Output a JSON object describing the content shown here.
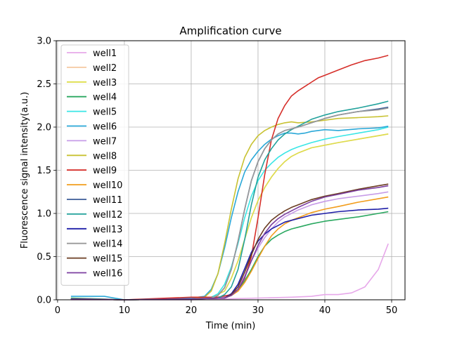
{
  "chart_data": {
    "type": "line",
    "title": "Amplification curve",
    "xlabel": "Time (min)",
    "ylabel": "Fluorescence signal intensity(a.u.)",
    "xlim": [
      -0.2,
      52
    ],
    "ylim": [
      0,
      3.0
    ],
    "xticks": [
      "0",
      "10",
      "20",
      "30",
      "40",
      "50"
    ],
    "yticks": [
      "0.0",
      "0.5",
      "1.0",
      "1.5",
      "2.0",
      "2.5",
      "3.0"
    ],
    "grid": true,
    "legend_position": "upper-left",
    "series": [
      {
        "name": "well1",
        "color": "#e7a8ea",
        "x": [
          2,
          10,
          20,
          25,
          30,
          35,
          38,
          40,
          42,
          44,
          46,
          48,
          49.5
        ],
        "y": [
          0.0,
          0.0,
          0.0,
          0.01,
          0.02,
          0.03,
          0.04,
          0.06,
          0.06,
          0.08,
          0.15,
          0.35,
          0.65
        ]
      },
      {
        "name": "well2",
        "color": "#f5c9a0",
        "x": [
          2,
          10,
          20,
          23,
          25,
          26,
          27,
          28,
          29,
          30,
          31,
          32,
          33,
          34,
          35,
          36,
          38,
          40,
          42,
          45,
          48,
          49.5
        ],
        "y": [
          0.01,
          0.0,
          0.01,
          0.03,
          0.1,
          0.25,
          0.45,
          0.7,
          0.95,
          1.15,
          1.3,
          1.42,
          1.52,
          1.6,
          1.66,
          1.7,
          1.76,
          1.79,
          1.82,
          1.86,
          1.9,
          1.92
        ]
      },
      {
        "name": "well3",
        "color": "#dddd4a",
        "x": [
          2,
          10,
          20,
          23,
          25,
          26,
          27,
          28,
          29,
          30,
          31,
          32,
          33,
          34,
          35,
          36,
          38,
          40,
          42,
          45,
          48,
          49.5
        ],
        "y": [
          0.01,
          0.0,
          0.01,
          0.03,
          0.1,
          0.25,
          0.45,
          0.7,
          0.95,
          1.15,
          1.3,
          1.42,
          1.52,
          1.6,
          1.66,
          1.7,
          1.76,
          1.79,
          1.82,
          1.86,
          1.9,
          1.92
        ]
      },
      {
        "name": "well4",
        "color": "#2aa860",
        "x": [
          2,
          10,
          20,
          24,
          26,
          27,
          28,
          29,
          30,
          31,
          32,
          33,
          34,
          35,
          36,
          38,
          40,
          42,
          45,
          48,
          49.5
        ],
        "y": [
          0.02,
          0.0,
          0.01,
          0.02,
          0.06,
          0.12,
          0.22,
          0.35,
          0.5,
          0.62,
          0.7,
          0.75,
          0.79,
          0.82,
          0.84,
          0.88,
          0.91,
          0.93,
          0.96,
          1.0,
          1.02
        ]
      },
      {
        "name": "well5",
        "color": "#3ae6e6",
        "x": [
          2,
          10,
          20,
          23,
          24,
          25,
          26,
          27,
          28,
          29,
          30,
          31,
          32,
          33,
          34,
          35,
          36,
          38,
          40,
          42,
          45,
          48,
          49.5
        ],
        "y": [
          0.01,
          0.0,
          0.01,
          0.03,
          0.07,
          0.18,
          0.38,
          0.65,
          0.95,
          1.2,
          1.38,
          1.5,
          1.58,
          1.65,
          1.7,
          1.74,
          1.77,
          1.82,
          1.86,
          1.89,
          1.93,
          1.97,
          2.0
        ]
      },
      {
        "name": "well6",
        "color": "#2aa8d8",
        "x": [
          2,
          7,
          10,
          20,
          22,
          23,
          24,
          25,
          26,
          27,
          28,
          29,
          30,
          31,
          32,
          33,
          34,
          35,
          36,
          37,
          38,
          40,
          42,
          45,
          48,
          49.5
        ],
        "y": [
          0.04,
          0.04,
          0.0,
          0.02,
          0.04,
          0.12,
          0.3,
          0.6,
          0.95,
          1.25,
          1.48,
          1.62,
          1.72,
          1.8,
          1.86,
          1.9,
          1.93,
          1.93,
          1.92,
          1.93,
          1.95,
          1.97,
          1.96,
          1.98,
          1.99,
          2.01
        ]
      },
      {
        "name": "well7",
        "color": "#c79ce8",
        "x": [
          2,
          10,
          20,
          25,
          26,
          27,
          28,
          29,
          30,
          31,
          32,
          33,
          34,
          35,
          36,
          38,
          40,
          42,
          45,
          48,
          49.5
        ],
        "y": [
          0.01,
          0.0,
          0.01,
          0.03,
          0.07,
          0.15,
          0.28,
          0.45,
          0.6,
          0.72,
          0.82,
          0.9,
          0.96,
          1.0,
          1.04,
          1.1,
          1.14,
          1.17,
          1.2,
          1.23,
          1.25
        ]
      },
      {
        "name": "well8",
        "color": "#c8c232",
        "x": [
          2,
          10,
          20,
          22,
          23,
          24,
          25,
          26,
          27,
          28,
          29,
          30,
          31,
          32,
          33,
          34,
          35,
          36,
          38,
          40,
          42,
          45,
          48,
          49.5
        ],
        "y": [
          0.01,
          0.0,
          0.01,
          0.03,
          0.1,
          0.3,
          0.65,
          1.05,
          1.4,
          1.65,
          1.8,
          1.9,
          1.96,
          2.0,
          2.03,
          2.05,
          2.06,
          2.05,
          2.06,
          2.08,
          2.1,
          2.11,
          2.12,
          2.13
        ]
      },
      {
        "name": "well9",
        "color": "#d62f2a",
        "x": [
          2,
          10,
          20,
          24,
          26,
          27,
          28,
          29,
          30,
          31,
          32,
          33,
          34,
          35,
          36,
          37,
          38,
          39,
          40,
          41,
          42,
          44,
          46,
          48,
          49.5
        ],
        "y": [
          0.01,
          0.0,
          0.03,
          0.03,
          0.06,
          0.12,
          0.25,
          0.5,
          0.95,
          1.45,
          1.85,
          2.1,
          2.25,
          2.36,
          2.42,
          2.47,
          2.52,
          2.57,
          2.6,
          2.63,
          2.66,
          2.72,
          2.77,
          2.8,
          2.83
        ]
      },
      {
        "name": "well10",
        "color": "#f29d1c",
        "x": [
          2,
          10,
          20,
          25,
          26,
          27,
          28,
          29,
          30,
          31,
          32,
          33,
          34,
          35,
          36,
          38,
          40,
          42,
          45,
          48,
          49.5
        ],
        "y": [
          0.01,
          0.0,
          0.01,
          0.02,
          0.05,
          0.1,
          0.2,
          0.33,
          0.48,
          0.62,
          0.74,
          0.82,
          0.88,
          0.92,
          0.95,
          1.01,
          1.05,
          1.08,
          1.13,
          1.17,
          1.19
        ]
      },
      {
        "name": "well11",
        "color": "#3b5c98",
        "x": [
          2,
          10,
          20,
          23,
          24,
          25,
          26,
          27,
          28,
          29,
          30,
          31,
          32,
          33,
          34,
          35,
          36,
          38,
          40,
          42,
          45,
          48,
          49.5
        ],
        "y": [
          0.01,
          0.0,
          0.01,
          0.02,
          0.05,
          0.14,
          0.35,
          0.68,
          1.05,
          1.38,
          1.6,
          1.75,
          1.85,
          1.92,
          1.96,
          1.98,
          2.0,
          2.05,
          2.1,
          2.14,
          2.18,
          2.21,
          2.23
        ]
      },
      {
        "name": "well12",
        "color": "#22a29c",
        "x": [
          2,
          10,
          20,
          24,
          25,
          26,
          27,
          28,
          29,
          30,
          31,
          32,
          33,
          34,
          35,
          36,
          37,
          38,
          40,
          42,
          45,
          48,
          49.5
        ],
        "y": [
          0.01,
          0.0,
          0.01,
          0.02,
          0.06,
          0.15,
          0.35,
          0.7,
          1.1,
          1.42,
          1.62,
          1.75,
          1.85,
          1.92,
          1.97,
          2.01,
          2.05,
          2.09,
          2.14,
          2.18,
          2.22,
          2.27,
          2.3
        ]
      },
      {
        "name": "well13",
        "color": "#1f1fa8",
        "x": [
          2,
          10,
          20,
          25,
          26,
          27,
          28,
          29,
          30,
          31,
          32,
          33,
          34,
          35,
          36,
          38,
          40,
          42,
          45,
          48,
          49.5
        ],
        "y": [
          0.01,
          0.0,
          0.01,
          0.02,
          0.07,
          0.18,
          0.36,
          0.55,
          0.68,
          0.76,
          0.82,
          0.86,
          0.9,
          0.92,
          0.94,
          0.98,
          1.0,
          1.02,
          1.04,
          1.05,
          1.06
        ]
      },
      {
        "name": "well14",
        "color": "#999999",
        "x": [
          2,
          10,
          20,
          23,
          24,
          25,
          26,
          27,
          28,
          29,
          30,
          31,
          32,
          33,
          34,
          35,
          36,
          38,
          40,
          42,
          45,
          48,
          49.5
        ],
        "y": [
          0.01,
          0.0,
          0.01,
          0.02,
          0.05,
          0.14,
          0.35,
          0.68,
          1.05,
          1.38,
          1.6,
          1.75,
          1.85,
          1.92,
          1.96,
          1.98,
          2.0,
          2.05,
          2.1,
          2.14,
          2.18,
          2.2,
          2.22
        ]
      },
      {
        "name": "well15",
        "color": "#6b3d22",
        "x": [
          2,
          10,
          20,
          25,
          26,
          27,
          28,
          29,
          30,
          31,
          32,
          33,
          34,
          35,
          36,
          38,
          40,
          42,
          45,
          48,
          49.5
        ],
        "y": [
          0.01,
          0.0,
          0.01,
          0.02,
          0.06,
          0.15,
          0.32,
          0.52,
          0.7,
          0.83,
          0.92,
          0.98,
          1.03,
          1.07,
          1.1,
          1.16,
          1.2,
          1.23,
          1.28,
          1.32,
          1.34
        ]
      },
      {
        "name": "well16",
        "color": "#7c3fa0",
        "x": [
          2,
          10,
          20,
          25,
          26,
          27,
          28,
          29,
          30,
          31,
          32,
          33,
          34,
          35,
          36,
          38,
          40,
          42,
          45,
          48,
          49.5
        ],
        "y": [
          0.01,
          0.0,
          0.01,
          0.02,
          0.05,
          0.12,
          0.26,
          0.45,
          0.63,
          0.77,
          0.87,
          0.94,
          0.99,
          1.03,
          1.07,
          1.14,
          1.19,
          1.22,
          1.27,
          1.3,
          1.32
        ]
      }
    ]
  }
}
